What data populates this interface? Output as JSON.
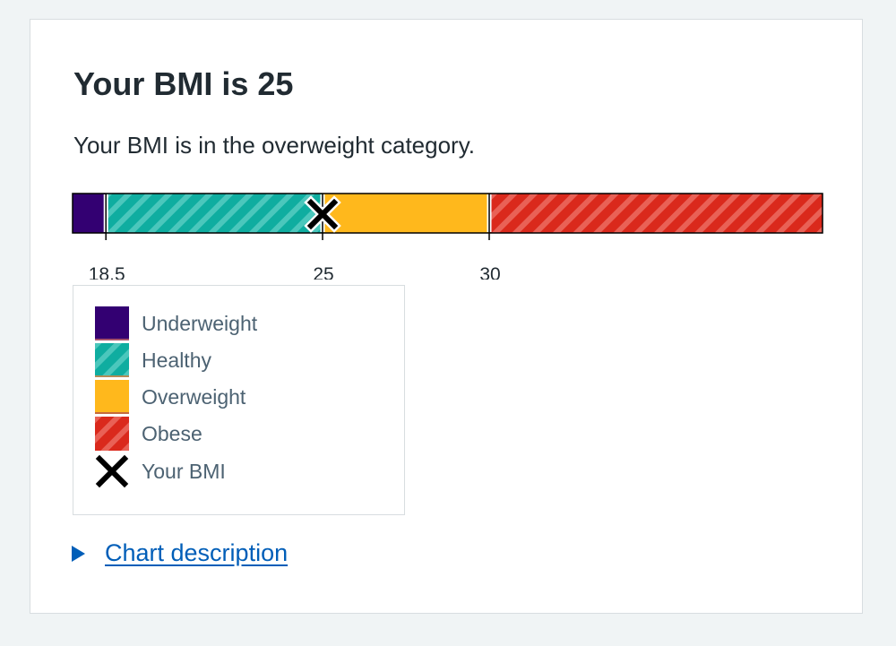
{
  "result": {
    "title": "Your BMI is 25",
    "message": "Your BMI is in the overweight category."
  },
  "chart_data": {
    "type": "bar",
    "orientation": "horizontal-range",
    "bmi_value": 25,
    "marker_label": "Your BMI",
    "range": [
      17.5,
      40
    ],
    "segments": [
      {
        "name": "Underweight",
        "from": 17.5,
        "to": 18.5,
        "color": "#330072",
        "pattern": "solid"
      },
      {
        "name": "Healthy",
        "from": 18.5,
        "to": 25,
        "color": "#0fada0",
        "pattern": "striped"
      },
      {
        "name": "Overweight",
        "from": 25,
        "to": 30,
        "color": "#ffb81c",
        "pattern": "solid"
      },
      {
        "name": "Obese",
        "from": 30,
        "to": 40,
        "color": "#da291c",
        "pattern": "striped"
      }
    ],
    "ticks": [
      {
        "value": 18.5,
        "label": "18.5"
      },
      {
        "value": 25,
        "label": "25"
      },
      {
        "value": 30,
        "label": "30"
      }
    ]
  },
  "legend": {
    "items": [
      {
        "label": "Underweight",
        "icon": "underweight-swatch"
      },
      {
        "label": "Healthy",
        "icon": "healthy-swatch"
      },
      {
        "label": "Overweight",
        "icon": "overweight-swatch"
      },
      {
        "label": "Obese",
        "icon": "obese-swatch"
      },
      {
        "label": "Your BMI",
        "icon": "cross-icon"
      }
    ]
  },
  "details": {
    "summary": "Chart description",
    "icon": "triangle-right-icon"
  }
}
